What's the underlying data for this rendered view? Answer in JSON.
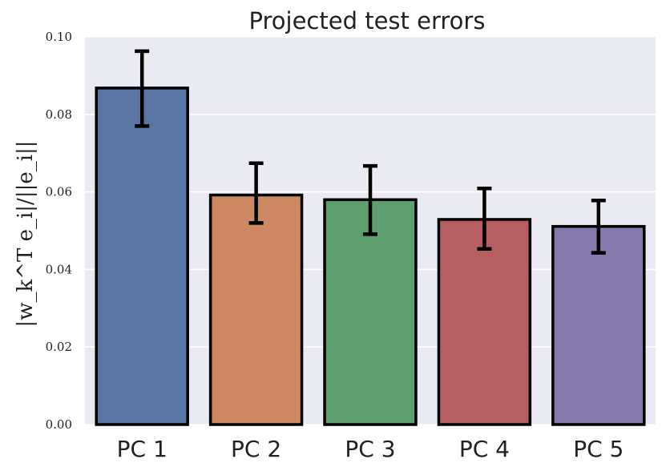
{
  "chart_data": {
    "type": "bar",
    "title": "Projected test errors",
    "ylabel": "|w_k^T e_i|/||e_i||",
    "xlabel": "",
    "categories": [
      "PC 1",
      "PC 2",
      "PC 3",
      "PC 4",
      "PC 5"
    ],
    "values": [
      0.0868,
      0.0592,
      0.058,
      0.0529,
      0.0511
    ],
    "error_low": [
      0.077,
      0.052,
      0.0491,
      0.0453,
      0.0443
    ],
    "error_high": [
      0.0963,
      0.0674,
      0.0667,
      0.0609,
      0.0578
    ],
    "ylim": [
      0,
      0.1
    ],
    "yticks": [
      "0.00",
      "0.02",
      "0.04",
      "0.06",
      "0.08",
      "0.10"
    ],
    "colors": [
      "#5875a4",
      "#cc8963",
      "#5f9e6e",
      "#b55d60",
      "#857aab"
    ],
    "background": "#eaeaf2",
    "grid": true,
    "legend": "none"
  }
}
